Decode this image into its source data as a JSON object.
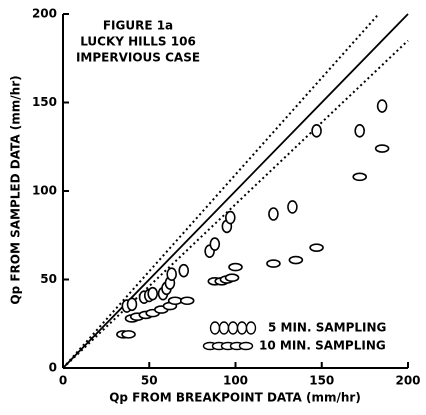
{
  "chart_data": {
    "type": "scatter",
    "title": [
      "FIGURE 1a",
      "LUCKY HILLS 106",
      "IMPERVIOUS CASE"
    ],
    "x_label": "Qp FROM BREAKPOINT DATA (mm/hr)",
    "y_label": "Qp FROM SAMPLED DATA (mm/hr)",
    "xlim": [
      0,
      200
    ],
    "ylim": [
      0,
      200
    ],
    "xticks": [
      0,
      50,
      100,
      150,
      200
    ],
    "yticks": [
      0,
      50,
      100,
      150,
      200
    ],
    "reference_lines": [
      {
        "x": [
          0,
          200
        ],
        "y": [
          0,
          200
        ],
        "style": "solid"
      },
      {
        "x": [
          0,
          183
        ],
        "y": [
          0,
          200
        ],
        "style": "dotted"
      },
      {
        "x": [
          0,
          200
        ],
        "y": [
          0,
          185
        ],
        "style": "dotted"
      }
    ],
    "series": [
      {
        "name": "5 MIN. SAMPLING",
        "marker": "circle",
        "color": "#000000",
        "x": [
          37,
          40,
          47,
          50,
          52,
          58,
          60,
          62,
          63,
          70,
          85,
          88,
          95,
          97,
          122,
          133,
          147,
          172,
          185
        ],
        "values": [
          35,
          36,
          40,
          41,
          42,
          42,
          45,
          48,
          53,
          55,
          66,
          70,
          80,
          85,
          87,
          91,
          134,
          134,
          148
        ]
      },
      {
        "name": "10 MIN. SAMPLING",
        "marker": "flat",
        "color": "#000000",
        "x": [
          35,
          38,
          40,
          43,
          48,
          52,
          57,
          62,
          65,
          72,
          88,
          92,
          95,
          98,
          100,
          122,
          135,
          147,
          172,
          185
        ],
        "values": [
          19,
          19,
          28,
          29,
          30,
          31,
          33,
          35,
          38,
          38,
          49,
          49,
          50,
          51,
          57,
          59,
          61,
          68,
          108,
          124
        ]
      }
    ]
  }
}
